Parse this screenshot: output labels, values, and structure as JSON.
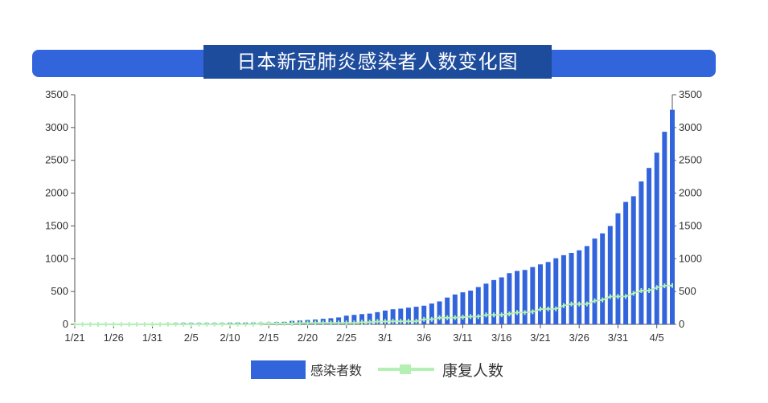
{
  "chart_data": {
    "type": "bar",
    "title": "日本新冠肺炎感染者人数变化图",
    "x_tick_labels": [
      "1/21",
      "1/26",
      "1/31",
      "2/5",
      "2/10",
      "2/15",
      "2/20",
      "2/25",
      "3/1",
      "3/6",
      "3/11",
      "3/16",
      "3/21",
      "3/26",
      "3/31",
      "4/5"
    ],
    "x_start": "1/21",
    "x_end": "4/5",
    "ylim": [
      0,
      3500
    ],
    "y_ticks": [
      0,
      500,
      1000,
      1500,
      2000,
      2500,
      3000,
      3500
    ],
    "y_tick_labels": [
      "0",
      "500",
      "1000",
      "1500",
      "2000",
      "2500",
      "3000",
      "3500"
    ],
    "grid": false,
    "legend_position": "bottom",
    "series": [
      {
        "name": "感染者数",
        "type": "bar",
        "color": "#3264dc",
        "values": [
          1,
          1,
          1,
          1,
          1,
          2,
          2,
          2,
          4,
          6,
          7,
          11,
          14,
          17,
          20,
          20,
          20,
          20,
          20,
          20,
          25,
          26,
          26,
          26,
          26,
          28,
          33,
          38,
          53,
          59,
          66,
          73,
          84,
          93,
          105,
          132,
          144,
          156,
          164,
          186,
          210,
          230,
          239,
          254,
          268,
          284,
          317,
          349,
          408,
          455,
          488,
          514,
          568,
          620,
          675,
          716,
          780,
          814,
          829,
          873,
          914,
          950,
          1007,
          1054,
          1089,
          1128,
          1193,
          1307,
          1387,
          1499,
          1693,
          1866,
          1953,
          2178,
          2384,
          2617,
          2935,
          3271
        ]
      },
      {
        "name": "康复人数",
        "type": "line",
        "color": "#b4f0b4",
        "values": [
          0,
          0,
          0,
          0,
          0,
          0,
          0,
          0,
          0,
          0,
          0,
          0,
          0,
          0,
          0,
          0,
          1,
          1,
          1,
          1,
          1,
          1,
          1,
          4,
          9,
          12,
          12,
          12,
          12,
          18,
          18,
          22,
          22,
          22,
          22,
          22,
          22,
          32,
          32,
          43,
          43,
          46,
          46,
          46,
          46,
          76,
          76,
          101,
          101,
          102,
          109,
          118,
          118,
          144,
          144,
          144,
          159,
          180,
          180,
          191,
          232,
          235,
          235,
          285,
          310,
          310,
          310,
          359,
          372,
          424,
          424,
          424,
          472,
          514,
          514,
          560,
          587,
          592
        ]
      }
    ]
  }
}
